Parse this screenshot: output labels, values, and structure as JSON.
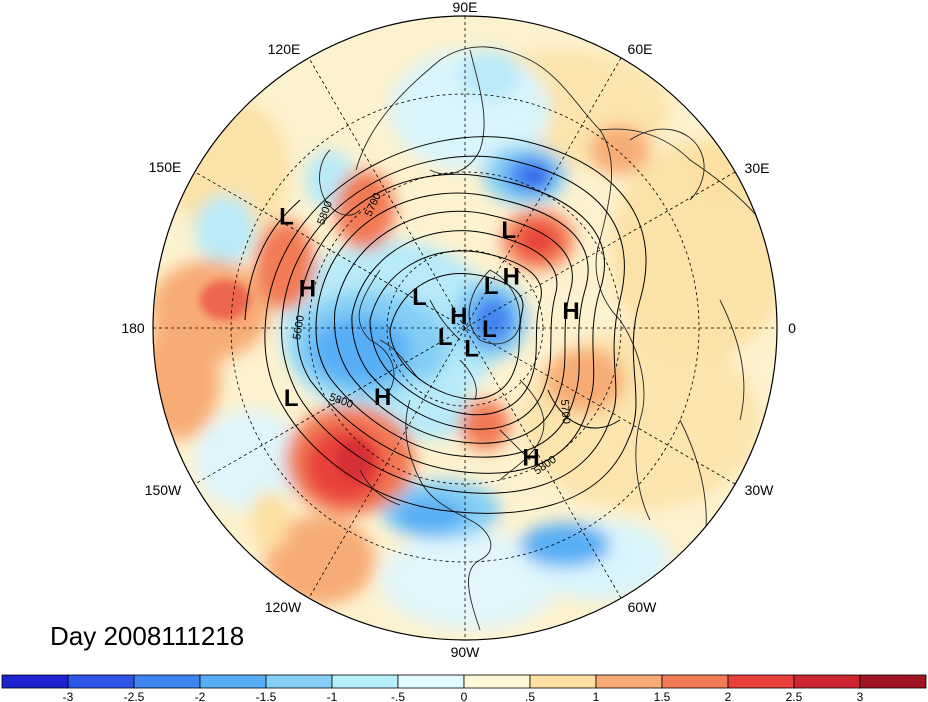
{
  "title": "Day 2008111218",
  "longitude_labels": [
    "90E",
    "60E",
    "30E",
    "0",
    "30W",
    "60W",
    "90W",
    "120W",
    "150W",
    "180",
    "150E",
    "120E"
  ],
  "pressure_systems": [
    {
      "type": "L",
      "lon": 66,
      "lat": 52
    },
    {
      "type": "H",
      "lon": 9,
      "lat": 52
    },
    {
      "type": "L",
      "lon": 58,
      "lat": 72
    },
    {
      "type": "H",
      "lon": 48,
      "lat": 65
    },
    {
      "type": "L",
      "lon": 148,
      "lat": 22
    },
    {
      "type": "H",
      "lon": 166,
      "lat": 35
    },
    {
      "type": "L",
      "lon": 146,
      "lat": 70
    },
    {
      "type": "L",
      "lon": 358,
      "lat": 81
    },
    {
      "type": "H",
      "lon": 117,
      "lat": 85
    },
    {
      "type": "L",
      "lon": 205,
      "lat": 82
    },
    {
      "type": "L",
      "lon": 288,
      "lat": 82
    },
    {
      "type": "H",
      "lon": 220,
      "lat": 52
    },
    {
      "type": "L",
      "lon": 202,
      "lat": 28
    },
    {
      "type": "H",
      "lon": 297,
      "lat": 40
    }
  ],
  "contour_labels": [
    "5800",
    "5700",
    "5600",
    "5800",
    "5700",
    "5800"
  ],
  "colorbar": {
    "ticks": [
      "-3",
      "-2.5",
      "-2",
      "-1.5",
      "-1",
      "-.5",
      "0",
      ".5",
      "1",
      "1.5",
      "2",
      "2.5",
      "3"
    ],
    "colors": [
      "#1e22d0",
      "#2e55e8",
      "#3f85f0",
      "#58aef5",
      "#84cff5",
      "#b6eefa",
      "#e2fbfe",
      "#fef8d8",
      "#fde0a2",
      "#f8ac74",
      "#f27a55",
      "#e8403a",
      "#cc2530",
      "#a01424"
    ]
  }
}
